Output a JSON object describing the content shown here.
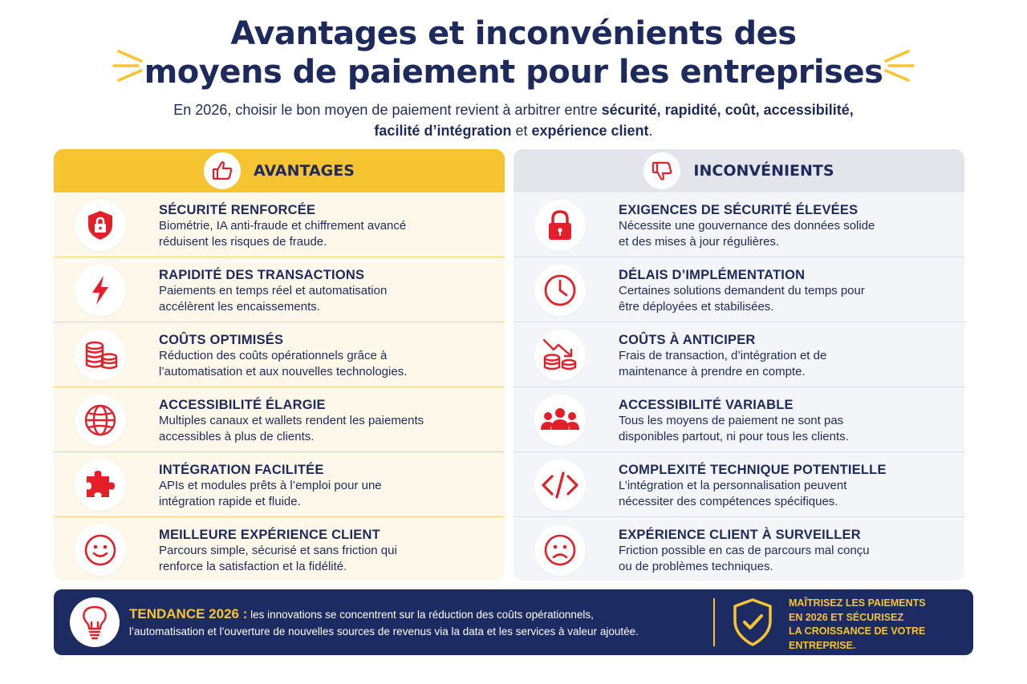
{
  "title": {
    "line1": "Avantages et inconvénients des",
    "line2": "moyens de paiement pour les entreprises"
  },
  "subtitle": {
    "part1": "En 2026, choisir le bon moyen de paiement revient à arbitrer entre ",
    "bold1": "sécurité, rapidité, coût, accessibilité,",
    "bold2": "facilité d’intégration",
    "part2": " et ",
    "bold3": "expérience client",
    "part3": "."
  },
  "advantages": {
    "header": "AVANTAGES",
    "header_icon": "thumbs-up-icon",
    "items": [
      {
        "icon": "shield-lock-icon",
        "title": "SÉCURITÉ RENFORCÉE",
        "line1": "Biométrie, IA anti-fraude et chiffrement avancé",
        "line2": "réduisent les risques de fraude."
      },
      {
        "icon": "lightning-icon",
        "title": "RAPIDITÉ DES TRANSACTIONS",
        "line1": "Paiements en temps réel et automatisation",
        "line2": "accélèrent les encaissements."
      },
      {
        "icon": "coins-icon",
        "title": "COÛTS OPTIMISÉS",
        "line1": "Réduction des coûts opérationnels grâce à",
        "line2": "l’automatisation et aux nouvelles technologies."
      },
      {
        "icon": "globe-icon",
        "title": "ACCESSIBILITÉ ÉLARGIE",
        "line1": "Multiples canaux et wallets rendent les paiements",
        "line2": "accessibles à plus de clients."
      },
      {
        "icon": "puzzle-icon",
        "title": "INTÉGRATION FACILITÉE",
        "line1": "APIs et modules prêts à l’emploi pour une",
        "line2": "intégration rapide et fluide."
      },
      {
        "icon": "smiley-icon",
        "title": "MEILLEURE EXPÉRIENCE CLIENT",
        "line1": "Parcours simple, sécurisé et sans friction qui",
        "line2": "renforce la satisfaction et la fidélité."
      }
    ]
  },
  "disadvantages": {
    "header": "INCONVÉNIENTS",
    "header_icon": "thumbs-down-icon",
    "items": [
      {
        "icon": "padlock-icon",
        "title": "EXIGENCES DE SÉCURITÉ ÉLEVÉES",
        "line1": "Nécessite une gouvernance des données solide",
        "line2": "et des mises à jour régulières."
      },
      {
        "icon": "clock-icon",
        "title": "DÉLAIS D’IMPLÉMENTATION",
        "line1": "Certaines solutions demandent du temps pour",
        "line2": "être déployées et stabilisées."
      },
      {
        "icon": "coins-down-arrow-icon",
        "title": "COÛTS À ANTICIPER",
        "line1": "Frais de transaction, d’intégration et de",
        "line2": "maintenance à prendre en compte."
      },
      {
        "icon": "people-group-icon",
        "title": "ACCESSIBILITÉ VARIABLE",
        "line1": "Tous les moyens de paiement ne sont pas",
        "line2": "disponibles partout, ni pour tous les clients."
      },
      {
        "icon": "code-icon",
        "title": "COMPLEXITÉ TECHNIQUE POTENTIELLE",
        "line1": "L’intégration et la personnalisation peuvent",
        "line2": "nécessiter des compétences spécifiques."
      },
      {
        "icon": "sad-face-icon",
        "title": "EXPÉRIENCE CLIENT À SURVEILLER",
        "line1": "Friction possible en cas de parcours mal conçu",
        "line2": "ou de problèmes techniques."
      }
    ]
  },
  "footer": {
    "trend_label": "TENDANCE 2026 :",
    "trend_line1": " les innovations se concentrent sur la réduction des coûts opérationnels,",
    "trend_line2": "l’automatisation et l’ouverture de nouvelles sources de revenus via la data et les services à valeur ajoutée.",
    "cta": [
      "MAÎTRISEZ LES PAIEMENTS",
      "EN 2026 ET SÉCURISEZ",
      "LA CROISSANCE DE VOTRE",
      "ENTREPRISE."
    ]
  },
  "colors": {
    "navy": "#1d2b63",
    "text": "#1f2a5c",
    "accent_red": "#e3202a",
    "yellow": "#f7c431",
    "adv_bg": "#fdf8ea",
    "inc_bg": "#f4f5f8"
  }
}
